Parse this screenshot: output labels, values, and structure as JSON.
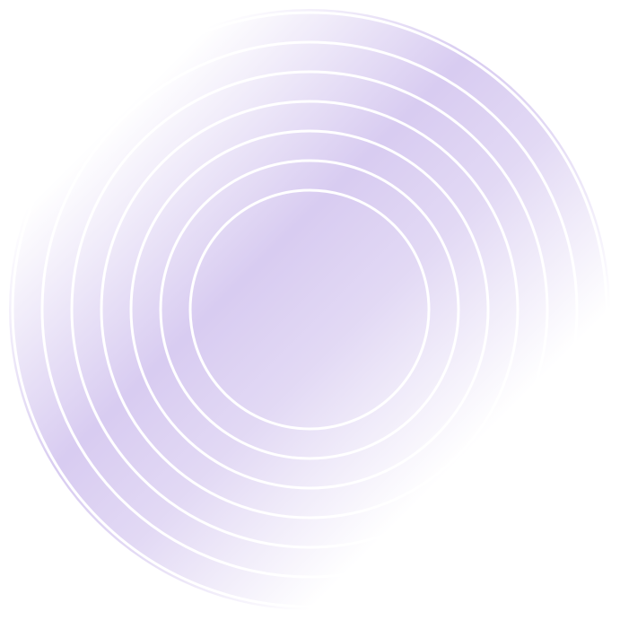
{
  "graphic": {
    "kind": "concentric-circles",
    "ring_count": 7,
    "colors": {
      "background": "#ffffff",
      "tint": "#d6c9f0",
      "ring_stroke": "#ffffff"
    }
  }
}
